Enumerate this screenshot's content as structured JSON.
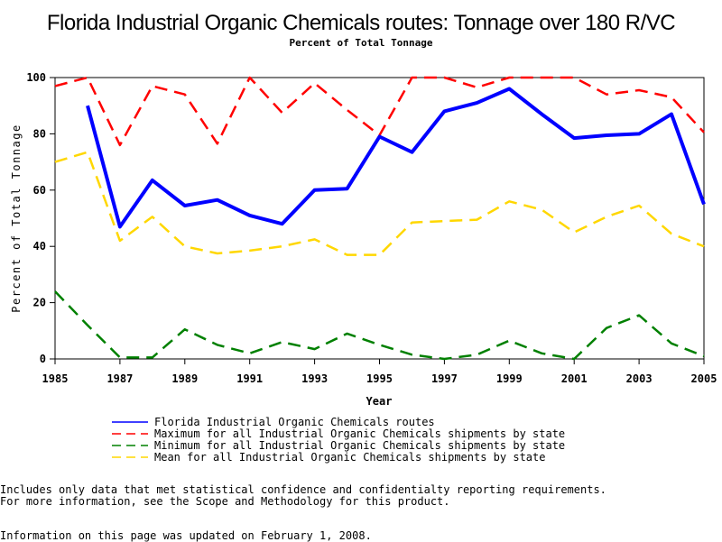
{
  "chart_data": {
    "type": "line",
    "title": "Florida Industrial Organic Chemicals routes: Tonnage over 180 R/VC",
    "subtitle": "Percent of Total Tonnage",
    "xlabel": "Year",
    "ylabel": "Percent of Total Tonnage",
    "xlim": [
      1985,
      2005
    ],
    "ylim": [
      0,
      100
    ],
    "xticks": [
      "1985",
      "1987",
      "1989",
      "1991",
      "1993",
      "1995",
      "1997",
      "1999",
      "2001",
      "2003",
      "2005"
    ],
    "yticks": [
      "0",
      "20",
      "40",
      "60",
      "80",
      "100"
    ],
    "grid": false,
    "legend_position": "bottom",
    "series": [
      {
        "name": "Florida Industrial Organic Chemicals routes",
        "color": "#0000ff",
        "style": "solid",
        "x": [
          1986,
          1987,
          1988,
          1989,
          1990,
          1991,
          1992,
          1993,
          1994,
          1995,
          1996,
          1997,
          1998,
          1999,
          2000,
          2001,
          2002,
          2003,
          2004,
          2005
        ],
        "y": [
          90,
          47,
          63.5,
          54.5,
          56.5,
          51,
          48,
          60,
          60.5,
          79,
          73.5,
          88,
          91,
          96,
          87,
          78.5,
          79.5,
          80,
          87,
          55
        ]
      },
      {
        "name": "Maximum for all Industrial Organic Chemicals shipments by state",
        "color": "#ff0000",
        "style": "dashed",
        "x": [
          1985,
          1986,
          1987,
          1988,
          1989,
          1990,
          1991,
          1992,
          1993,
          1994,
          1995,
          1996,
          1997,
          1998,
          1999,
          2000,
          2001,
          2002,
          2003,
          2004,
          2005
        ],
        "y": [
          97,
          100,
          76,
          97,
          94,
          76.5,
          100,
          87.5,
          98,
          88.5,
          79.5,
          100,
          100,
          96.5,
          100,
          100,
          100,
          94,
          95.5,
          93,
          80.5
        ]
      },
      {
        "name": "Minimum for all Industrial Organic Chemicals shipments by state",
        "color": "#008000",
        "style": "dashed",
        "x": [
          1985,
          1986,
          1987,
          1988,
          1989,
          1990,
          1991,
          1992,
          1993,
          1994,
          1995,
          1996,
          1997,
          1998,
          1999,
          2000,
          2001,
          2002,
          2003,
          2004,
          2005
        ],
        "y": [
          24,
          12,
          0.5,
          0.5,
          10.5,
          5,
          2,
          6,
          3.5,
          9,
          5,
          1.5,
          0,
          1.5,
          6.5,
          2,
          0,
          11,
          15.5,
          5.5,
          1
        ]
      },
      {
        "name": "Mean for all Industrial Organic Chemicals shipments by state",
        "color": "#ffd700",
        "style": "dashed",
        "x": [
          1985,
          1986,
          1987,
          1988,
          1989,
          1990,
          1991,
          1992,
          1993,
          1994,
          1995,
          1996,
          1997,
          1998,
          1999,
          2000,
          2001,
          2002,
          2003,
          2004,
          2005
        ],
        "y": [
          70,
          73.5,
          42,
          50.5,
          40,
          37.5,
          38.5,
          40,
          42.5,
          37,
          37,
          48.5,
          49,
          49.5,
          56,
          53,
          45,
          50.5,
          54.5,
          44.5,
          40
        ]
      }
    ]
  },
  "footnotes": {
    "line1": "Includes only data that met statistical confidence and confidentialty reporting requirements.",
    "line2": "For more information, see the Scope and Methodology for this product.",
    "updated": "Information on this page was updated on February 1, 2008."
  }
}
